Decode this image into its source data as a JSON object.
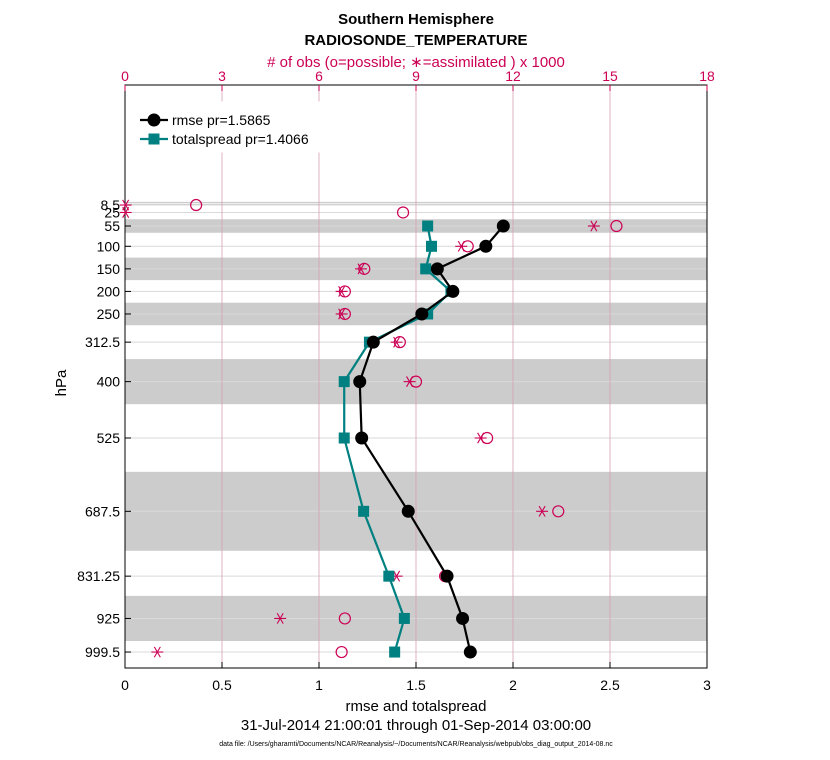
{
  "chart_data": {
    "type": "line",
    "title": [
      "Southern Hemisphere",
      "RADIOSONDE_TEMPERATURE"
    ],
    "top_axis_label": "# of obs (o=possible; ∗=assimilated ) x 1000",
    "xlabel": "rmse and totalspread",
    "ylabel": "hPa",
    "subtitle": "31-Jul-2014 21:00:01 through 01-Sep-2014 03:00:00",
    "footnote": "data file: /Users/gharamti/Documents/NCAR/Reanalysis/~/Documents/NCAR/Reanalysis/webpub/obs_diag_output_2014-08.nc",
    "xlim": [
      0,
      3
    ],
    "xticks": [
      0,
      0.5,
      1,
      1.5,
      2,
      2.5,
      3
    ],
    "xticklabels": [
      "0",
      "0.5",
      "1",
      "1.5",
      "2",
      "2.5",
      "3"
    ],
    "top_xlim": [
      0,
      18
    ],
    "top_xticks": [
      0,
      3,
      6,
      9,
      12,
      15,
      18
    ],
    "top_xticklabels": [
      "0",
      "3",
      "6",
      "9",
      "12",
      "15",
      "18"
    ],
    "levels": [
      8.5,
      25,
      55,
      100,
      150,
      200,
      250,
      312.5,
      400,
      525,
      687.5,
      831.25,
      925,
      999.5
    ],
    "ytick_labels": [
      "8.5",
      "25",
      "55",
      "100",
      "150",
      "200",
      "250",
      "312.5",
      "400",
      "525",
      "687.5",
      "831.25",
      "925",
      "999.5"
    ],
    "shaded_bands_hPa": [
      [
        1.5,
        4
      ],
      [
        5.5,
        9
      ],
      [
        40,
        70
      ],
      [
        125,
        175
      ],
      [
        225,
        275
      ],
      [
        350,
        450
      ],
      [
        600,
        775
      ],
      [
        875,
        975
      ]
    ],
    "series": [
      {
        "name": "rmse",
        "legend": "rmse pr=1.5865",
        "color": "#000000",
        "marker": "circle",
        "levels": [
          55,
          100,
          150,
          200,
          250,
          312.5,
          400,
          525,
          687.5,
          831.25,
          925,
          999.5
        ],
        "values": [
          1.95,
          1.86,
          1.61,
          1.69,
          1.53,
          1.28,
          1.21,
          1.22,
          1.46,
          1.66,
          1.74,
          1.78
        ]
      },
      {
        "name": "totalspread",
        "legend": "totalspread pr=1.4066",
        "color": "#008080",
        "marker": "square",
        "levels": [
          55,
          100,
          150,
          200,
          250,
          312.5,
          400,
          525,
          687.5,
          831.25,
          925,
          999.5
        ],
        "values": [
          1.56,
          1.58,
          1.55,
          1.68,
          1.56,
          1.26,
          1.13,
          1.13,
          1.23,
          1.36,
          1.44,
          1.39
        ]
      }
    ],
    "obs_possible": {
      "color": "#cc0055",
      "levels": [
        8.5,
        25,
        55,
        100,
        150,
        200,
        250,
        312.5,
        400,
        525,
        687.5,
        831.25,
        925,
        999.5
      ],
      "values": [
        2.2,
        8.6,
        15.2,
        10.6,
        7.4,
        6.8,
        6.8,
        8.5,
        9.0,
        11.2,
        13.4,
        9.9,
        6.8,
        6.7
      ]
    },
    "obs_assimilated": {
      "color": "#cc0055",
      "levels": [
        8.5,
        25,
        55,
        100,
        150,
        200,
        250,
        312.5,
        400,
        525,
        687.5,
        831.25,
        925,
        999.5
      ],
      "values": [
        0.02,
        0.02,
        14.5,
        10.4,
        7.3,
        6.7,
        6.7,
        8.4,
        8.8,
        11.0,
        12.9,
        8.4,
        4.8,
        1.0
      ]
    }
  }
}
